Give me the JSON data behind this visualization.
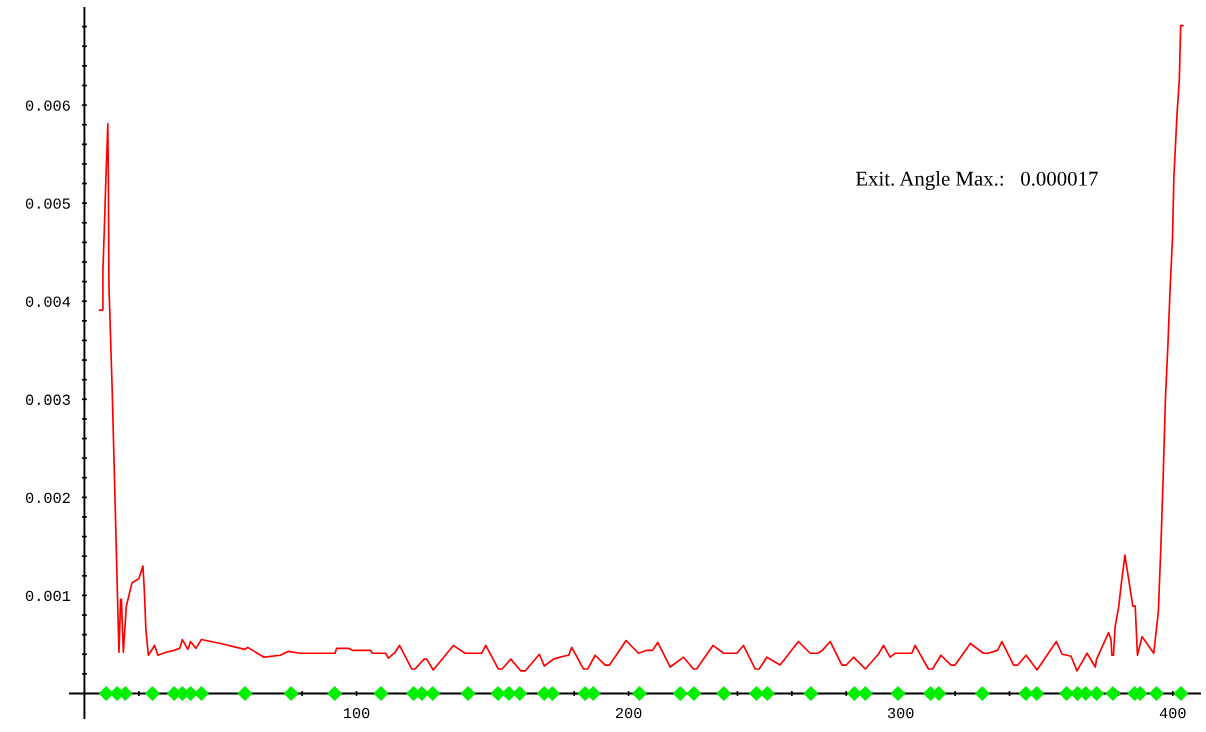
{
  "chart_data": {
    "type": "line",
    "annotations": [
      "Exit. Angle Max.:   0.000017"
    ],
    "xlim": [
      -5.3,
      410
    ],
    "ylim": [
      -0.00025,
      0.00699
    ],
    "xticks": [
      {
        "value": 20,
        "label": null
      },
      {
        "value": 40,
        "label": null
      },
      {
        "value": 60,
        "label": null
      },
      {
        "value": 80,
        "label": null
      },
      100,
      {
        "value": 120,
        "label": null
      },
      {
        "value": 140,
        "label": null
      },
      {
        "value": 160,
        "label": null
      },
      {
        "value": 180,
        "label": null
      },
      200,
      {
        "value": 220,
        "label": null
      },
      {
        "value": 240,
        "label": null
      },
      {
        "value": 260,
        "label": null
      },
      {
        "value": 280,
        "label": null
      },
      300,
      {
        "value": 320,
        "label": null
      },
      {
        "value": 340,
        "label": null
      },
      {
        "value": 360,
        "label": null
      },
      {
        "value": 380,
        "label": null
      },
      400
    ],
    "yticks": [
      {
        "value": 0.0002,
        "label": null
      },
      {
        "value": 0.0004,
        "label": null
      },
      {
        "value": 0.0006,
        "label": null
      },
      {
        "value": 0.0008,
        "label": null
      },
      0.001,
      {
        "value": 0.0012,
        "label": null
      },
      {
        "value": 0.0014,
        "label": null
      },
      {
        "value": 0.0016,
        "label": null
      },
      {
        "value": 0.0018,
        "label": null
      },
      0.002,
      {
        "value": 0.0022,
        "label": null
      },
      {
        "value": 0.0024,
        "label": null
      },
      {
        "value": 0.0026,
        "label": null
      },
      {
        "value": 0.0028,
        "label": null
      },
      0.003,
      {
        "value": 0.0032,
        "label": null
      },
      {
        "value": 0.0034,
        "label": null
      },
      {
        "value": 0.0036,
        "label": null
      },
      {
        "value": 0.0038,
        "label": null
      },
      0.004,
      {
        "value": 0.0042,
        "label": null
      },
      {
        "value": 0.0044,
        "label": null
      },
      {
        "value": 0.0046,
        "label": null
      },
      {
        "value": 0.0048,
        "label": null
      },
      0.005,
      {
        "value": 0.0052,
        "label": null
      },
      {
        "value": 0.0054,
        "label": null
      },
      {
        "value": 0.0056,
        "label": null
      },
      {
        "value": 0.0058,
        "label": null
      },
      0.006,
      {
        "value": 0.0062,
        "label": null
      },
      {
        "value": 0.0064,
        "label": null
      },
      {
        "value": 0.0066,
        "label": null
      },
      {
        "value": 0.0068,
        "label": null
      }
    ],
    "grid": false,
    "legend": false,
    "series": [
      {
        "color": "#ff0000",
        "marker": "none",
        "line_style": "solid",
        "x": [
          5.6,
          6.8,
          6.8,
          7.3,
          7.8,
          8.6,
          8.8,
          9.0,
          10.2,
          11.2,
          12.2,
          12.7,
          13.3,
          13.6,
          14.3,
          15.4,
          17.5,
          20,
          21.5,
          22.0,
          22.6,
          23.5,
          25.8,
          27,
          30,
          33,
          35,
          36,
          38,
          39,
          41,
          43,
          50,
          59,
          60,
          66,
          72,
          75,
          79.2,
          92.1,
          92.7,
          97,
          98.5,
          105.2,
          105.8,
          110.7,
          111.7,
          114.2,
          115.8,
          120.3,
          121.5,
          124.8,
          125.8,
          128.2,
          135.6,
          139.9,
          146.0,
          147.5,
          152.1,
          153.5,
          156.7,
          160.4,
          162,
          167.2,
          169,
          172.4,
          176,
          178,
          179.1,
          183.4,
          185,
          187.7,
          191.4,
          193,
          199.1,
          203.6,
          206.7,
          208.8,
          210.7,
          215.3,
          220.2,
          223.8,
          225,
          231,
          234.9,
          239.8,
          242.2,
          246.5,
          248,
          250.8,
          255.7,
          262.4,
          266.7,
          269.5,
          271.2,
          274.1,
          278.4,
          280,
          282.7,
          287,
          291.8,
          293.7,
          296.1,
          297.9,
          304.1,
          305.3,
          310.2,
          311.7,
          314.8,
          318.5,
          320,
          325.6,
          330.4,
          332,
          335.6,
          337.2,
          341.5,
          343,
          346.1,
          350.1,
          357.2,
          359.3,
          361.2,
          362.6,
          364.8,
          368.5,
          371.5,
          372,
          376.4,
          377.3,
          377.6,
          378.2,
          378.8,
          380.1,
          381,
          382.4,
          385.3,
          386.2,
          387,
          388.7,
          393,
          394.7,
          395.6,
          396.4,
          397.3,
          398.2,
          399,
          399.9,
          400.4,
          401.6,
          402.4,
          402.9,
          403.7
        ],
        "values": [
          0.00391,
          0.00391,
          0.00432,
          0.00472,
          0.00517,
          0.00581,
          0.00527,
          0.00417,
          0.0031,
          0.00203,
          0.00094,
          0.00042,
          0.00096,
          0.00096,
          0.00042,
          0.00089,
          0.00113,
          0.00117,
          0.0013,
          0.00106,
          0.00065,
          0.00039,
          0.00049,
          0.00039,
          0.00042,
          0.00044,
          0.00046,
          0.00055,
          0.00045,
          0.00053,
          0.00046,
          0.00055,
          0.00051,
          0.00045,
          0.00047,
          0.00037,
          0.00039,
          0.00043,
          0.00041,
          0.00041,
          0.00046,
          0.00046,
          0.00044,
          0.00044,
          0.00041,
          0.00041,
          0.00036,
          0.00042,
          0.00049,
          0.00025,
          0.00025,
          0.00035,
          0.00035,
          0.00024,
          0.00049,
          0.00041,
          0.00041,
          0.00049,
          0.00025,
          0.00025,
          0.00035,
          0.00023,
          0.00023,
          0.0004,
          0.00028,
          0.00035,
          0.00038,
          0.00039,
          0.00047,
          0.00025,
          0.00025,
          0.00039,
          0.00029,
          0.00029,
          0.00054,
          0.00041,
          0.00044,
          0.00044,
          0.00052,
          0.00027,
          0.00037,
          0.00025,
          0.00025,
          0.00049,
          0.00041,
          0.00041,
          0.00049,
          0.00025,
          0.00025,
          0.00037,
          0.00029,
          0.00053,
          0.00041,
          0.00041,
          0.00044,
          0.00053,
          0.00029,
          0.00029,
          0.00037,
          0.00025,
          0.0004,
          0.00049,
          0.00037,
          0.00041,
          0.00041,
          0.00049,
          0.00025,
          0.00025,
          0.00039,
          0.00029,
          0.00029,
          0.00051,
          0.00041,
          0.00041,
          0.00044,
          0.00053,
          0.00029,
          0.00029,
          0.00039,
          0.00024,
          0.00053,
          0.0004,
          0.00039,
          0.00038,
          0.00023,
          0.00041,
          0.00027,
          0.00035,
          0.00062,
          0.00055,
          0.00039,
          0.00039,
          0.00068,
          0.00088,
          0.0011,
          0.00141,
          0.00089,
          0.00089,
          0.00039,
          0.00058,
          0.00041,
          0.00084,
          0.00148,
          0.00215,
          0.00301,
          0.00355,
          0.00412,
          0.00465,
          0.00527,
          0.00593,
          0.00626,
          0.00681,
          0.00681
        ]
      },
      {
        "type": "scatter",
        "color": "#00ee00",
        "marker": "diamond",
        "x": [
          8,
          12,
          15,
          25,
          33,
          36,
          39,
          43,
          59,
          76,
          92,
          109,
          121,
          124,
          128,
          141,
          152,
          156,
          160,
          169,
          172,
          184,
          187,
          204,
          219,
          224,
          235,
          247,
          251,
          267,
          283,
          287,
          299,
          311,
          314,
          330,
          346,
          350,
          361,
          365,
          368,
          372,
          378,
          386,
          388,
          394,
          403
        ],
        "values": [
          0,
          0,
          0,
          0,
          0,
          0,
          0,
          0,
          0,
          0,
          0,
          0,
          0,
          0,
          0,
          0,
          0,
          0,
          0,
          0,
          0,
          0,
          0,
          0,
          0,
          0,
          0,
          0,
          0,
          0,
          0,
          0,
          0,
          0,
          0,
          0,
          0,
          0,
          0,
          0,
          0,
          0,
          0,
          0,
          0,
          0,
          0
        ]
      }
    ]
  }
}
